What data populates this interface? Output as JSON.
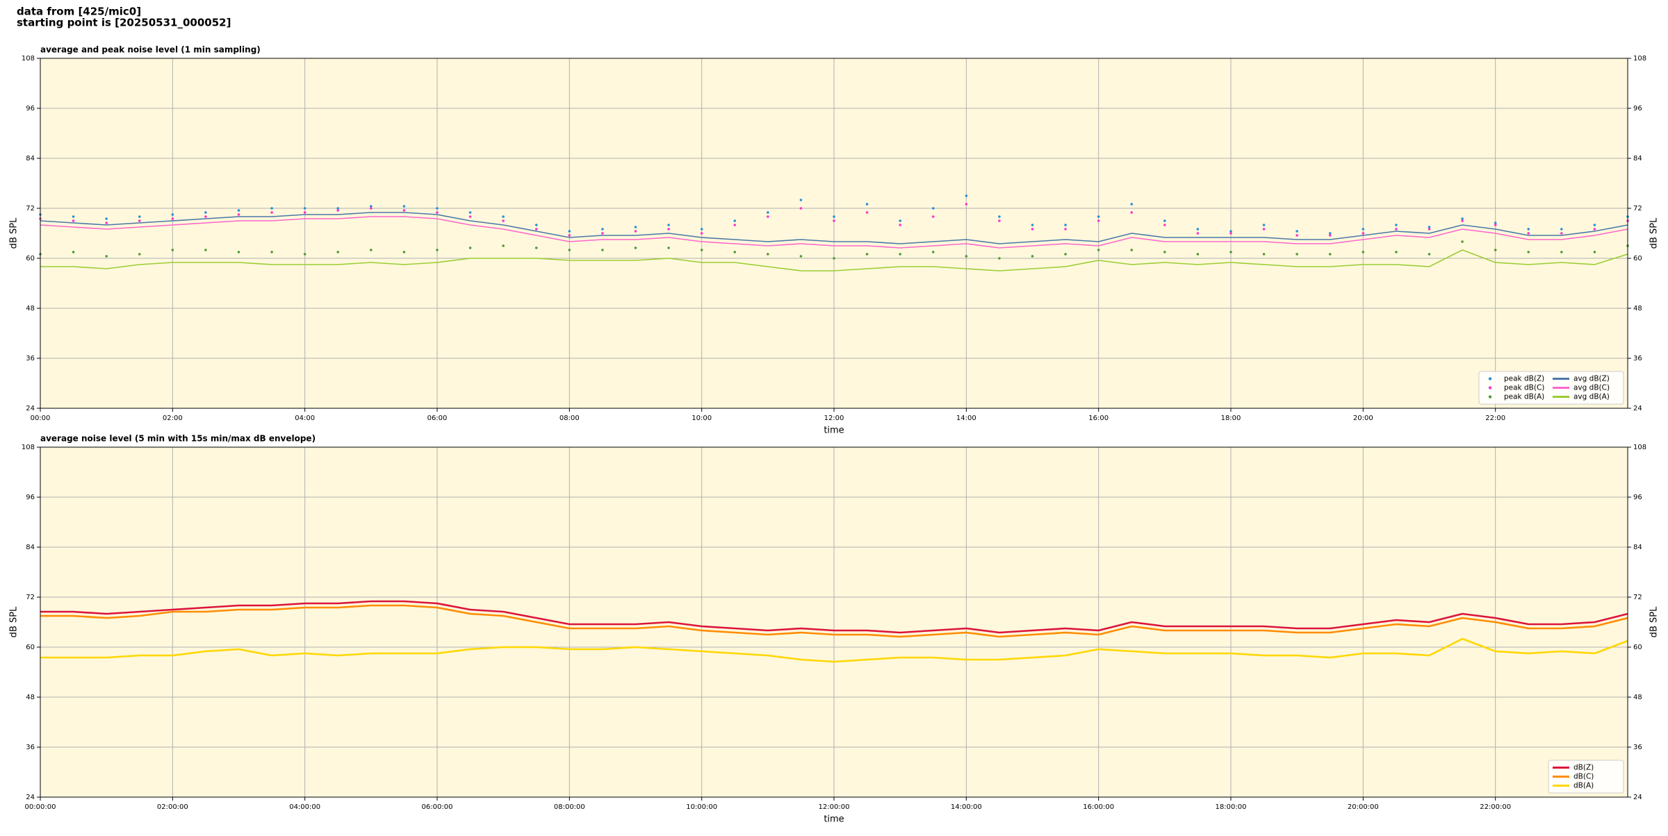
{
  "header": {
    "lines": [
      "data from [425/mic0]",
      "starting point is [20250531_000052]"
    ]
  },
  "chart_data": [
    {
      "type": "line",
      "title": "average and peak noise level (1 min sampling)",
      "xlabel": "time",
      "ylabel": "dB SPL",
      "x": [
        0,
        0.5,
        1,
        1.5,
        2,
        2.5,
        3,
        3.5,
        4,
        4.5,
        5,
        5.5,
        6,
        6.5,
        7,
        7.5,
        8,
        8.5,
        9,
        9.5,
        10,
        10.5,
        11,
        11.5,
        12,
        12.5,
        13,
        13.5,
        14,
        14.5,
        15,
        15.5,
        16,
        16.5,
        17,
        17.5,
        18,
        18.5,
        19,
        19.5,
        20,
        20.5,
        21,
        21.5,
        22,
        22.5,
        23,
        23.5,
        24
      ],
      "xlim": [
        0,
        24
      ],
      "xticks": [
        {
          "value": 0,
          "label": "00:00"
        },
        {
          "value": 2,
          "label": "02:00"
        },
        {
          "value": 4,
          "label": "04:00"
        },
        {
          "value": 6,
          "label": "06:00"
        },
        {
          "value": 8,
          "label": "08:00"
        },
        {
          "value": 10,
          "label": "10:00"
        },
        {
          "value": 12,
          "label": "12:00"
        },
        {
          "value": 14,
          "label": "14:00"
        },
        {
          "value": 16,
          "label": "16:00"
        },
        {
          "value": 18,
          "label": "18:00"
        },
        {
          "value": 20,
          "label": "20:00"
        },
        {
          "value": 22,
          "label": "22:00"
        }
      ],
      "ylim": [
        24,
        108
      ],
      "yticks": [
        24,
        36,
        48,
        60,
        72,
        84,
        96,
        108
      ],
      "grid": true,
      "background": "#fff8dc",
      "legend": "lower right",
      "legend_columns": 2,
      "series": [
        {
          "name": "peak dB(Z)",
          "color": "#2a8fd8",
          "style": "dots",
          "values": [
            70.5,
            70,
            69.5,
            70,
            70.5,
            71,
            71.5,
            72,
            72,
            72,
            72.5,
            72.5,
            72,
            71,
            70,
            68,
            66.5,
            67,
            67.5,
            68,
            67,
            69,
            71,
            74,
            70,
            73,
            69,
            72,
            75,
            70,
            68,
            68,
            70,
            73,
            69,
            67,
            66.5,
            68,
            66.5,
            66,
            67,
            68,
            67.5,
            69.5,
            68.5,
            67,
            67,
            68,
            70
          ]
        },
        {
          "name": "peak dB(C)",
          "color": "#ff33cc",
          "style": "dots",
          "values": [
            69.5,
            69,
            68.5,
            69,
            69.5,
            70,
            70.5,
            71,
            71,
            71.5,
            72,
            71.5,
            71,
            70,
            69,
            67,
            65.5,
            66,
            66.5,
            67,
            66,
            68,
            70,
            72,
            69,
            71,
            68,
            70,
            73,
            69,
            67,
            67,
            69,
            71,
            68,
            66,
            66,
            67,
            65.5,
            65.5,
            66,
            67,
            67,
            69,
            68,
            66,
            66,
            67,
            69
          ]
        },
        {
          "name": "peak dB(A)",
          "color": "#4e9a3a",
          "style": "dots",
          "values": [
            61,
            61.5,
            60.5,
            61,
            62,
            62,
            61.5,
            61.5,
            61,
            61.5,
            62,
            61.5,
            62,
            62.5,
            63,
            62.5,
            62,
            62,
            62.5,
            62.5,
            62,
            61.5,
            61,
            60.5,
            60,
            61,
            61,
            61.5,
            60.5,
            60,
            60.5,
            61,
            62,
            62,
            61.5,
            61,
            61.5,
            61,
            61,
            61,
            61.5,
            61.5,
            61,
            64,
            62,
            61.5,
            61.5,
            61.5,
            63
          ]
        },
        {
          "name": "avg dB(Z)",
          "color": "#4a78a8",
          "style": "line",
          "values": [
            69,
            68.5,
            68,
            68.5,
            69,
            69.5,
            70,
            70,
            70.5,
            70.5,
            71,
            71,
            70.5,
            69,
            68,
            66.5,
            65,
            65.5,
            65.5,
            66,
            65,
            64.5,
            64,
            64.5,
            64,
            64,
            63.5,
            64,
            64.5,
            63.5,
            64,
            64.5,
            64,
            66,
            65,
            65,
            65,
            65,
            64.5,
            64.5,
            65.5,
            66.5,
            66,
            68,
            67,
            65.5,
            65.5,
            66.5,
            68
          ]
        },
        {
          "name": "avg dB(C)",
          "color": "#ff66cc",
          "style": "line",
          "values": [
            68,
            67.5,
            67,
            67.5,
            68,
            68.5,
            69,
            69,
            69.5,
            69.5,
            70,
            70,
            69.5,
            68,
            67,
            65.5,
            64,
            64.5,
            64.5,
            65,
            64,
            63.5,
            63,
            63.5,
            63,
            63,
            62.5,
            63,
            63.5,
            62.5,
            63,
            63.5,
            63,
            65,
            64,
            64,
            64,
            64,
            63.5,
            63.5,
            64.5,
            65.5,
            65,
            67,
            66,
            64.5,
            64.5,
            65.5,
            67
          ]
        },
        {
          "name": "avg dB(A)",
          "color": "#9acd32",
          "style": "line",
          "values": [
            58,
            58,
            57.5,
            58.5,
            59,
            59,
            59,
            58.5,
            58.5,
            58.5,
            59,
            58.5,
            59,
            60,
            60,
            60,
            59.5,
            59.5,
            59.5,
            60,
            59,
            59,
            58,
            57,
            57,
            57.5,
            58,
            58,
            57.5,
            57,
            57.5,
            58,
            59.5,
            58.5,
            59,
            58.5,
            59,
            58.5,
            58,
            58,
            58.5,
            58.5,
            58,
            62,
            59,
            58.5,
            59,
            58.5,
            61
          ]
        }
      ]
    },
    {
      "type": "line",
      "title": "average noise level (5 min with 15s min/max dB envelope)",
      "xlabel": "time",
      "ylabel": "dB SPL",
      "x": [
        0,
        0.5,
        1,
        1.5,
        2,
        2.5,
        3,
        3.5,
        4,
        4.5,
        5,
        5.5,
        6,
        6.5,
        7,
        7.5,
        8,
        8.5,
        9,
        9.5,
        10,
        10.5,
        11,
        11.5,
        12,
        12.5,
        13,
        13.5,
        14,
        14.5,
        15,
        15.5,
        16,
        16.5,
        17,
        17.5,
        18,
        18.5,
        19,
        19.5,
        20,
        20.5,
        21,
        21.5,
        22,
        22.5,
        23,
        23.5,
        24
      ],
      "xlim": [
        0,
        24
      ],
      "xticks": [
        {
          "value": 0,
          "label": "00:00:00"
        },
        {
          "value": 2,
          "label": "02:00:00"
        },
        {
          "value": 4,
          "label": "04:00:00"
        },
        {
          "value": 6,
          "label": "06:00:00"
        },
        {
          "value": 8,
          "label": "08:00:00"
        },
        {
          "value": 10,
          "label": "10:00:00"
        },
        {
          "value": 12,
          "label": "12:00:00"
        },
        {
          "value": 14,
          "label": "14:00:00"
        },
        {
          "value": 16,
          "label": "16:00:00"
        },
        {
          "value": 18,
          "label": "18:00:00"
        },
        {
          "value": 20,
          "label": "20:00:00"
        },
        {
          "value": 22,
          "label": "22:00:00"
        }
      ],
      "ylim": [
        24,
        108
      ],
      "yticks": [
        24,
        36,
        48,
        60,
        72,
        84,
        96,
        108
      ],
      "grid": true,
      "background": "#fff8dc",
      "legend": "lower right",
      "legend_columns": 1,
      "series": [
        {
          "name": "dB(Z)",
          "color": "#dc143c",
          "style": "line",
          "values": [
            68.5,
            68.5,
            68,
            68.5,
            69,
            69.5,
            70,
            70,
            70.5,
            70.5,
            71,
            71,
            70.5,
            69,
            68.5,
            67,
            65.5,
            65.5,
            65.5,
            66,
            65,
            64.5,
            64,
            64.5,
            64,
            64,
            63.5,
            64,
            64.5,
            63.5,
            64,
            64.5,
            64,
            66,
            65,
            65,
            65,
            65,
            64.5,
            64.5,
            65.5,
            66.5,
            66,
            68,
            67,
            65.5,
            65.5,
            66,
            68
          ]
        },
        {
          "name": "dB(C)",
          "color": "#ff8c00",
          "style": "line",
          "values": [
            67.5,
            67.5,
            67,
            67.5,
            68.5,
            68.5,
            69,
            69,
            69.5,
            69.5,
            70,
            70,
            69.5,
            68,
            67.5,
            66,
            64.5,
            64.5,
            64.5,
            65,
            64,
            63.5,
            63,
            63.5,
            63,
            63,
            62.5,
            63,
            63.5,
            62.5,
            63,
            63.5,
            63,
            65,
            64,
            64,
            64,
            64,
            63.5,
            63.5,
            64.5,
            65.5,
            65,
            67,
            66,
            64.5,
            64.5,
            65,
            67
          ]
        },
        {
          "name": "dB(A)",
          "color": "#ffd700",
          "style": "line",
          "values": [
            57.5,
            57.5,
            57.5,
            58,
            58,
            59,
            59.5,
            58,
            58.5,
            58,
            58.5,
            58.5,
            58.5,
            59.5,
            60,
            60,
            59.5,
            59.5,
            60,
            59.5,
            59,
            58.5,
            58,
            57,
            56.5,
            57,
            57.5,
            57.5,
            57,
            57,
            57.5,
            58,
            59.5,
            59,
            58.5,
            58.5,
            58.5,
            58,
            58,
            57.5,
            58.5,
            58.5,
            58,
            62,
            59,
            58.5,
            59,
            58.5,
            61.5
          ]
        }
      ]
    }
  ]
}
